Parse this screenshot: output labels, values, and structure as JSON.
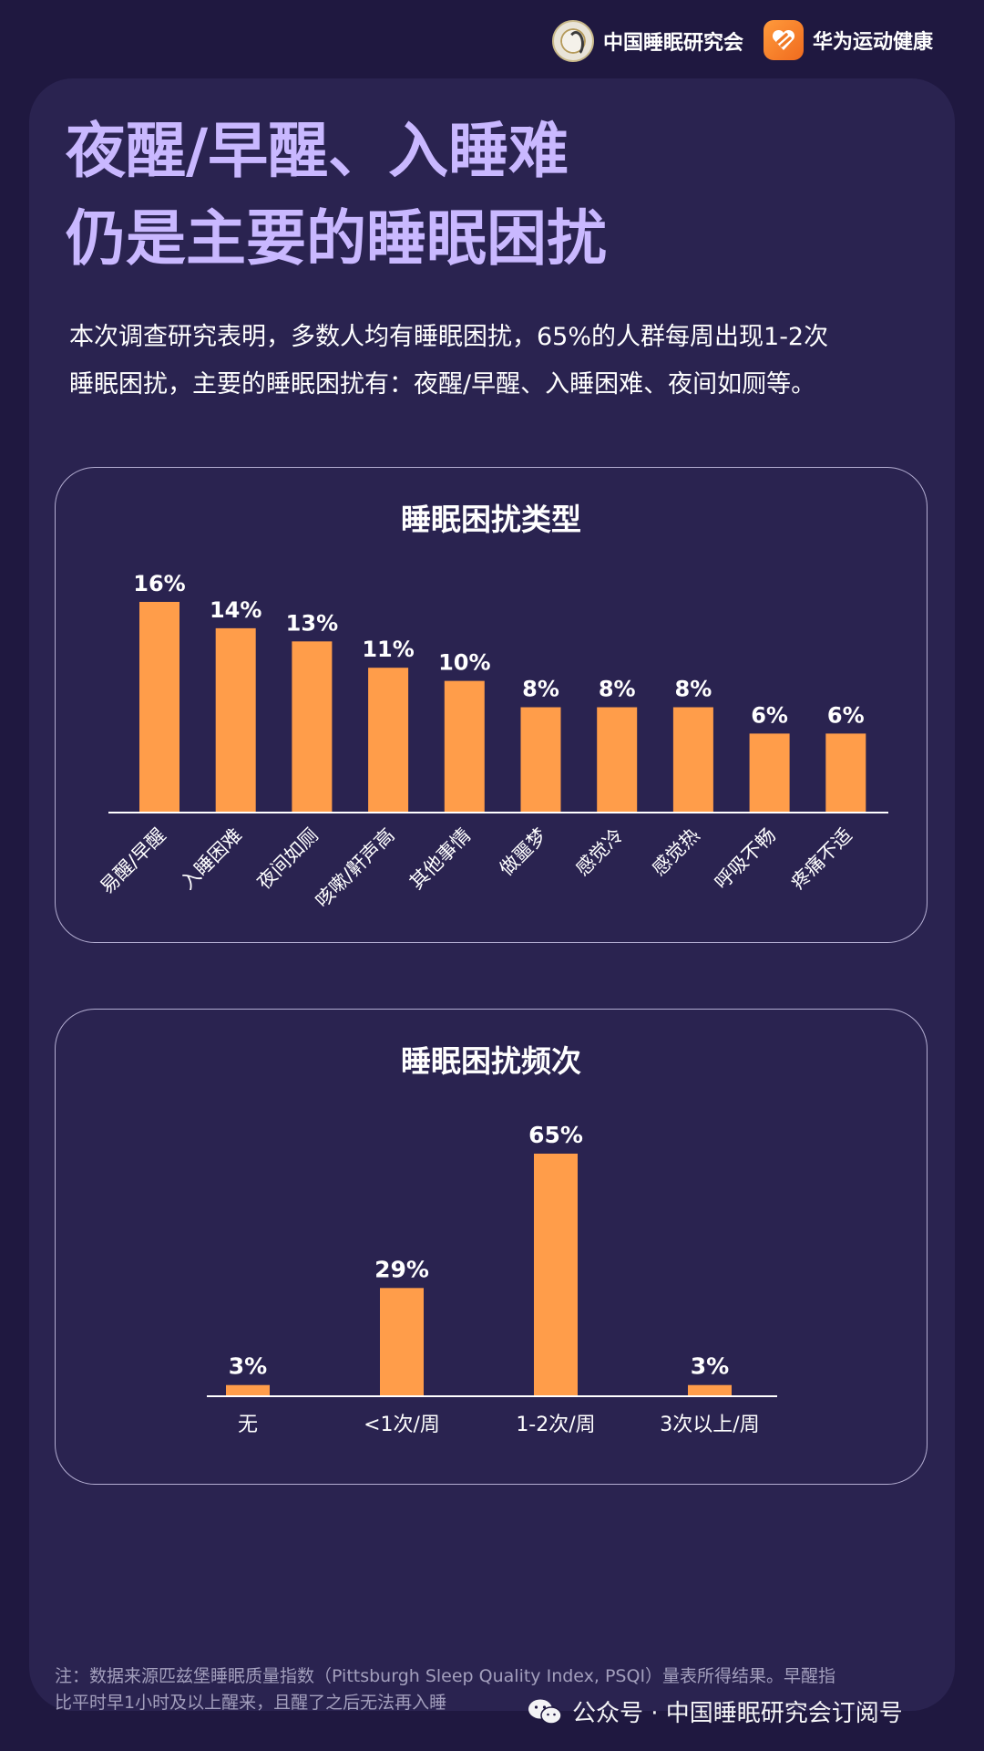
{
  "header": {
    "brand1_name": "中国睡眠研究会",
    "brand2_name": "华为运动健康"
  },
  "title": {
    "line1": "夜醒/早醒、入睡难",
    "line2": "仍是主要的睡眠困扰"
  },
  "intro": {
    "line1": "本次调查研究表明，多数人均有睡眠困扰，65%的人群每周出现1-2次",
    "line2": "睡眠困扰，主要的睡眠困扰有：夜醒/早醒、入睡困难、夜间如厕等。"
  },
  "colors": {
    "background": "#1f1840",
    "card": "#2a2350",
    "title": "#c9b8ff",
    "bar": "#ff9d4a",
    "axis": "#ffffff"
  },
  "chart_data": [
    {
      "type": "bar",
      "title": "睡眠困扰类型",
      "categories": [
        "易醒/早醒",
        "入睡困难",
        "夜间如厕",
        "咳嗽/鼾声高",
        "其他事情",
        "做噩梦",
        "感觉冷",
        "感觉热",
        "呼吸不畅",
        "疼痛不适"
      ],
      "values": [
        16,
        14,
        13,
        11,
        10,
        8,
        8,
        8,
        6,
        6
      ],
      "value_labels": [
        "16%",
        "14%",
        "13%",
        "11%",
        "10%",
        "8%",
        "8%",
        "8%",
        "6%",
        "6%"
      ],
      "unit": "%",
      "ylim": [
        0,
        16
      ],
      "grid": false,
      "tick_label_rotation": "diagonal"
    },
    {
      "type": "bar",
      "title": "睡眠困扰频次",
      "categories": [
        "无",
        "<1次/周",
        "1-2次/周",
        "3次以上/周"
      ],
      "values": [
        3,
        29,
        65,
        3
      ],
      "value_labels": [
        "3%",
        "29%",
        "65%",
        "3%"
      ],
      "unit": "%",
      "ylim": [
        0,
        65
      ],
      "grid": false
    }
  ],
  "footnote": {
    "line1": "注：数据来源匹兹堡睡眠质量指数（Pittsburgh Sleep Quality Index, PSQI）量表所得结果。早醒指",
    "line2": "比平时早1小时及以上醒来，且醒了之后无法再入睡"
  },
  "watermark": {
    "text": "公众号 · 中国睡眠研究会订阅号",
    "icon": "wechat-icon"
  }
}
